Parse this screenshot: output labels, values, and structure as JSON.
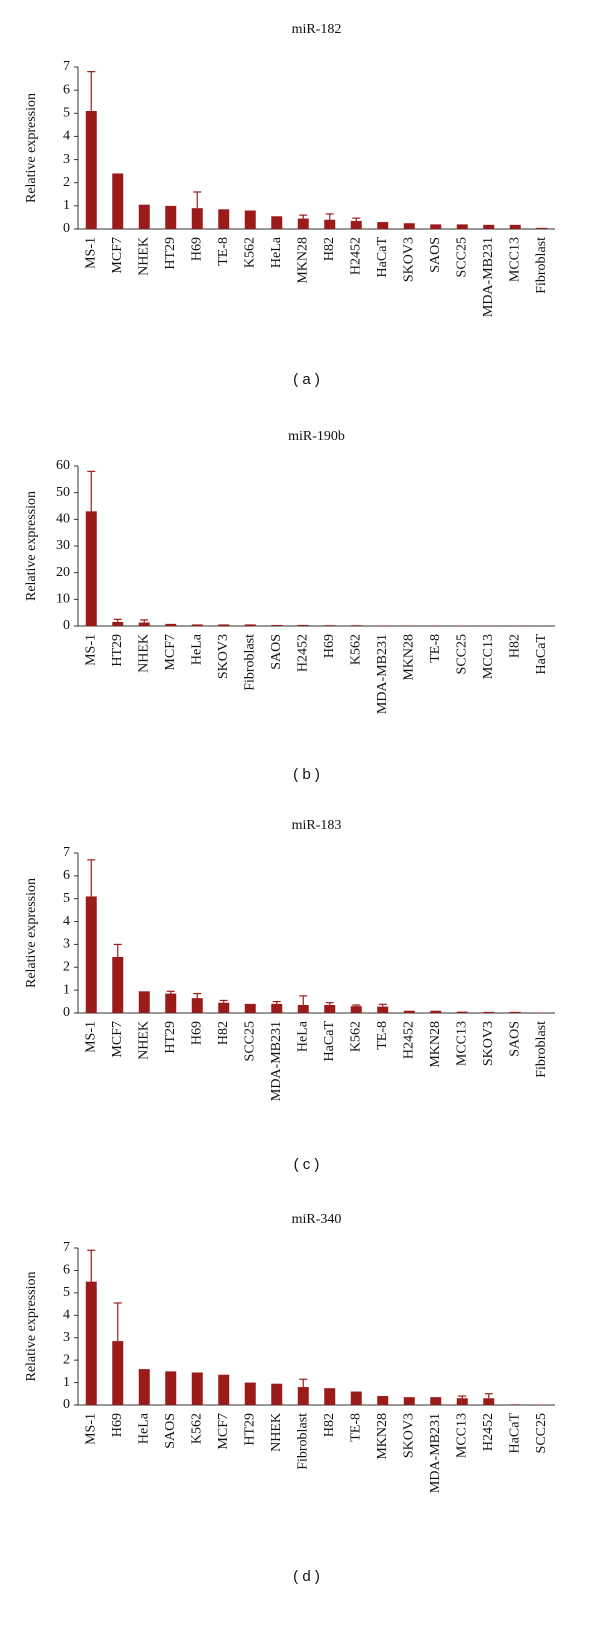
{
  "chart_data": [
    {
      "type": "bar",
      "title": "miR-182",
      "ylabel": "Relative expression",
      "caption": "( a )",
      "color": "#9b1b1b",
      "categories": [
        "MS-1",
        "MCF7",
        "NHEK",
        "HT29",
        "H69",
        "TE-8",
        "K562",
        "HeLa",
        "MKN28",
        "H82",
        "H2452",
        "HaCaT",
        "SKOV3",
        "SAOS",
        "SCC25",
        "MDA-MB231",
        "MCC13",
        "Fibroblast"
      ],
      "values": [
        5.1,
        2.4,
        1.05,
        1.0,
        0.9,
        0.85,
        0.8,
        0.55,
        0.45,
        0.4,
        0.35,
        0.3,
        0.25,
        0.2,
        0.2,
        0.18,
        0.18,
        0.05
      ],
      "errors": [
        1.7,
        0,
        0,
        0,
        0.7,
        0,
        0,
        0,
        0.15,
        0.25,
        0.12,
        0,
        0,
        0,
        0,
        0,
        0,
        0
      ],
      "ylim": [
        0,
        7
      ],
      "yticks": [
        0,
        1,
        2,
        3,
        4,
        5,
        6,
        7
      ]
    },
    {
      "type": "bar",
      "title": "miR-190b",
      "ylabel": "Relative expression",
      "caption": "( b )",
      "color": "#9b1b1b",
      "categories": [
        "MS-1",
        "HT29",
        "NHEK",
        "MCF7",
        "HeLa",
        "SKOV3",
        "Fibroblast",
        "SAOS",
        "H2452",
        "H69",
        "K562",
        "MDA-MB231",
        "MKN28",
        "TE-8",
        "SCC25",
        "MCC13",
        "H82",
        "HaCaT"
      ],
      "values": [
        43,
        1.5,
        1.3,
        0.8,
        0.6,
        0.6,
        0.6,
        0.4,
        0.4,
        0.3,
        0.3,
        0.2,
        0.2,
        0.2,
        0.15,
        0.15,
        0.1,
        0.05
      ],
      "errors": [
        15,
        1,
        1,
        0,
        0,
        0,
        0,
        0,
        0,
        0,
        0,
        0,
        0,
        0,
        0,
        0,
        0,
        0
      ],
      "ylim": [
        0,
        60
      ],
      "yticks": [
        0,
        10,
        20,
        30,
        40,
        50,
        60
      ]
    },
    {
      "type": "bar",
      "title": "miR-183",
      "ylabel": "Relative expression",
      "caption": "( c )",
      "color": "#9b1b1b",
      "categories": [
        "MS-1",
        "MCF7",
        "NHEK",
        "HT29",
        "H69",
        "H82",
        "SCC25",
        "MDA-MB231",
        "HeLa",
        "HaCaT",
        "K562",
        "TE-8",
        "H2452",
        "MKN28",
        "MCC13",
        "SKOV3",
        "SAOS",
        "Fibroblast"
      ],
      "values": [
        5.1,
        2.45,
        0.95,
        0.85,
        0.65,
        0.45,
        0.4,
        0.4,
        0.35,
        0.35,
        0.3,
        0.28,
        0.1,
        0.1,
        0.06,
        0.05,
        0.05,
        0.02
      ],
      "errors": [
        1.6,
        0.55,
        0,
        0.1,
        0.2,
        0.1,
        0,
        0.1,
        0.4,
        0.1,
        0.05,
        0.1,
        0,
        0,
        0,
        0,
        0,
        0
      ],
      "ylim": [
        0,
        7
      ],
      "yticks": [
        0,
        1,
        2,
        3,
        4,
        5,
        6,
        7
      ]
    },
    {
      "type": "bar",
      "title": "miR-340",
      "ylabel": "Relative expression",
      "caption": "( d )",
      "color": "#9b1b1b",
      "categories": [
        "MS-1",
        "H69",
        "HeLa",
        "SAOS",
        "K562",
        "MCF7",
        "HT29",
        "NHEK",
        "Fibroblast",
        "H82",
        "TE-8",
        "MKN28",
        "SKOV3",
        "MDA-MB231",
        "MCC13",
        "H2452",
        "HaCaT",
        "SCC25"
      ],
      "values": [
        5.5,
        2.85,
        1.6,
        1.5,
        1.45,
        1.35,
        1.0,
        0.95,
        0.8,
        0.75,
        0.6,
        0.4,
        0.35,
        0.35,
        0.3,
        0.3,
        0.03,
        0.02
      ],
      "errors": [
        1.4,
        1.7,
        0,
        0,
        0,
        0,
        0,
        0,
        0.35,
        0,
        0,
        0,
        0,
        0,
        0.1,
        0.2,
        0,
        0
      ],
      "ylim": [
        0,
        7
      ],
      "yticks": [
        0,
        1,
        2,
        3,
        4,
        5,
        6,
        7
      ]
    }
  ]
}
